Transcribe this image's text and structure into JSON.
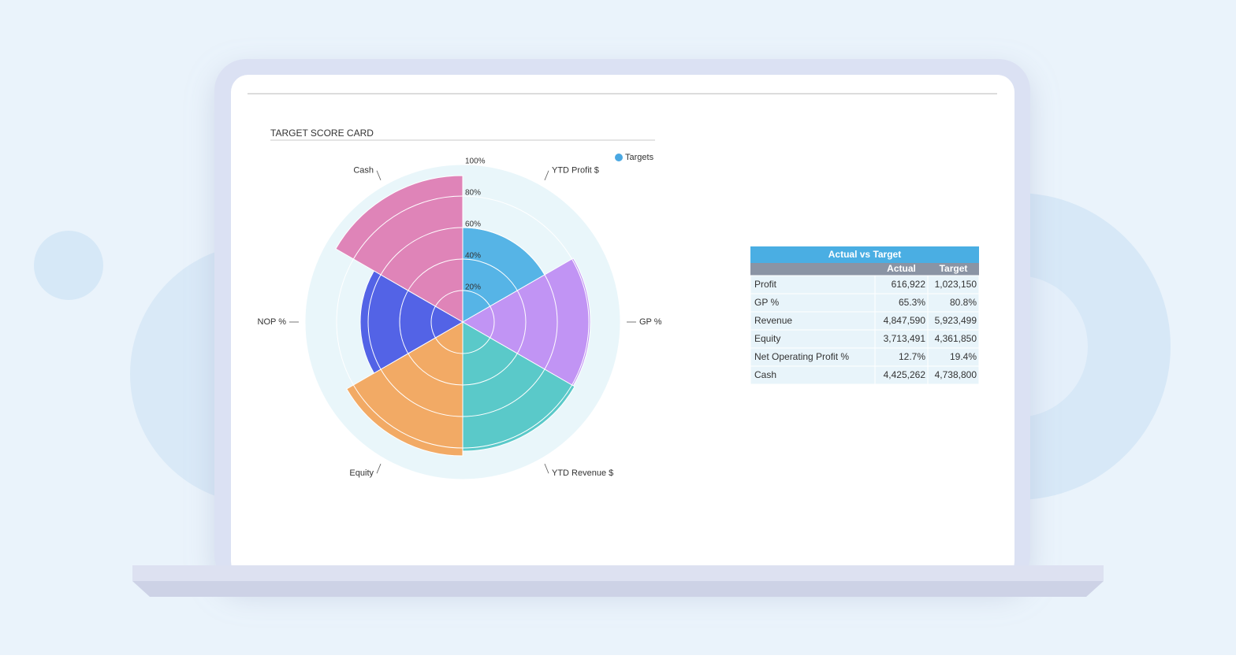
{
  "chart_data": {
    "type": "polarArea",
    "title": "TARGET SCORE CARD",
    "categories": [
      "YTD Profit $",
      "GP %",
      "YTD Revenue $",
      "Equity",
      "NOP %",
      "Cash"
    ],
    "series": [
      {
        "name": "Targets",
        "color": "#4aa8e2",
        "values": [
          60,
          81,
          82,
          85,
          65,
          93
        ]
      }
    ],
    "colors": [
      "#56b4e6",
      "#c194f4",
      "#5ac9c9",
      "#f2aa65",
      "#5363e6",
      "#df84b8"
    ],
    "rlim": [
      0,
      100
    ],
    "rticks": [
      {
        "value": 20,
        "label": "20%"
      },
      {
        "value": 40,
        "label": "40%"
      },
      {
        "value": 60,
        "label": "60%"
      },
      {
        "value": 80,
        "label": "80%"
      },
      {
        "value": 100,
        "label": "100%"
      }
    ],
    "legend": "top-right"
  },
  "table": {
    "title": "Actual vs Target",
    "columns": [
      "Actual",
      "Target"
    ],
    "rows": [
      [
        "Profit",
        "616,922",
        "1,023,150"
      ],
      [
        "GP %",
        "65.3%",
        "80.8%"
      ],
      [
        "Revenue",
        "4,847,590",
        "5,923,499"
      ],
      [
        "Equity",
        "3,713,491",
        "4,361,850"
      ],
      [
        "Net Operating Profit %",
        "12.7%",
        "19.4%"
      ],
      [
        "Cash",
        "4,425,262",
        "4,738,800"
      ]
    ]
  }
}
